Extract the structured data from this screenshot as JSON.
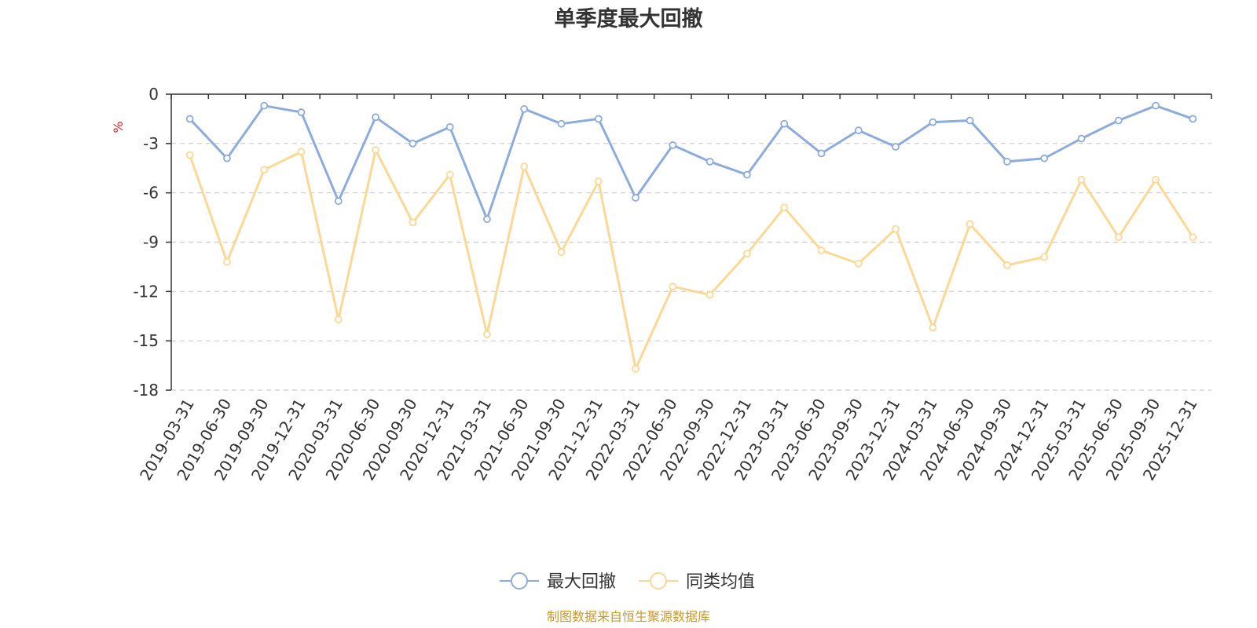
{
  "colors": {
    "series1": "#8eacdb",
    "series2": "#fbd895",
    "grid": "#cccccc",
    "axis": "#333333",
    "unit": "#e02020",
    "source": "#c89a2c",
    "title": "#333333"
  },
  "source_text": "制图数据来自恒生聚源数据库",
  "chart_data": {
    "type": "line",
    "title": "单季度最大回撤",
    "ylabel": "%",
    "xlabel": "",
    "ylim": [
      -18,
      0
    ],
    "yticks": [
      0,
      -3,
      -6,
      -9,
      -12,
      -15,
      -18
    ],
    "grid": true,
    "legend_position": "bottom-center",
    "categories": [
      "2019-03-31",
      "2019-06-30",
      "2019-09-30",
      "2019-12-31",
      "2020-03-31",
      "2020-06-30",
      "2020-09-30",
      "2020-12-31",
      "2021-03-31",
      "2021-06-30",
      "2021-09-30",
      "2021-12-31",
      "2022-03-31",
      "2022-06-30",
      "2022-09-30",
      "2022-12-31",
      "2023-03-31",
      "2023-06-30",
      "2023-09-30",
      "2023-12-31",
      "2024-03-31",
      "2024-06-30",
      "2024-09-30",
      "2024-12-31",
      "2025-03-31",
      "2025-06-30",
      "2025-09-30",
      "2025-12-31"
    ],
    "series": [
      {
        "name": "最大回撤",
        "values": [
          -1.5,
          -3.9,
          -0.7,
          -1.1,
          -6.5,
          -1.4,
          -3.0,
          -2.0,
          -7.6,
          -0.9,
          -1.8,
          -1.5,
          -6.3,
          -3.1,
          -4.1,
          -4.9,
          -1.8,
          -3.6,
          -2.2,
          -3.2,
          -1.7,
          -1.6,
          -4.1,
          -3.9,
          -2.7,
          -1.6,
          -0.7,
          -1.5
        ]
      },
      {
        "name": "同类均值",
        "values": [
          -3.7,
          -10.2,
          -4.6,
          -3.5,
          -13.7,
          -3.4,
          -7.8,
          -4.9,
          -14.6,
          -4.4,
          -9.6,
          -5.3,
          -16.7,
          -11.7,
          -12.2,
          -9.7,
          -6.9,
          -9.5,
          -10.3,
          -8.2,
          -14.2,
          -7.9,
          -10.4,
          -9.9,
          -5.2,
          -8.7,
          -5.2,
          -8.7
        ]
      }
    ]
  }
}
